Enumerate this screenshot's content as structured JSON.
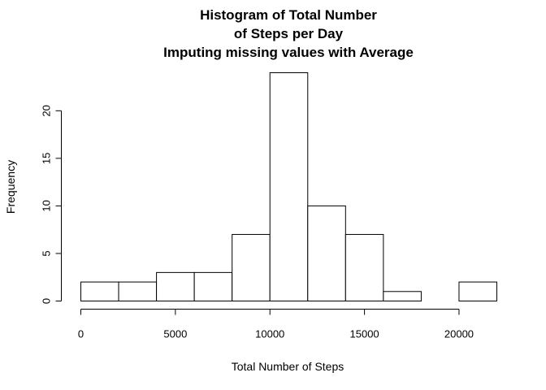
{
  "chart_data": {
    "type": "bar",
    "subtype": "histogram",
    "title_lines": [
      "Histogram of Total Number",
      "of Steps per Day",
      "Imputing missing values with Average"
    ],
    "xlabel": "Total Number of Steps",
    "ylabel": "Frequency",
    "bin_edges": [
      0,
      2000,
      4000,
      6000,
      8000,
      10000,
      12000,
      14000,
      16000,
      18000,
      20000,
      22000
    ],
    "values": [
      2,
      2,
      3,
      3,
      7,
      24,
      10,
      7,
      1,
      0,
      2
    ],
    "xlim": [
      0,
      22000
    ],
    "ylim": [
      0,
      24
    ],
    "x_ticks": [
      0,
      5000,
      10000,
      15000,
      20000
    ],
    "x_tick_labels": [
      "0",
      "5000",
      "10000",
      "15000",
      "20000"
    ],
    "y_ticks": [
      0,
      5,
      10,
      15,
      20
    ],
    "y_tick_labels": [
      "0",
      "5",
      "10",
      "15",
      "20"
    ],
    "grid": false,
    "legend": "none",
    "colors": {
      "bar_fill": "#ffffff",
      "bar_stroke": "#000000"
    }
  }
}
